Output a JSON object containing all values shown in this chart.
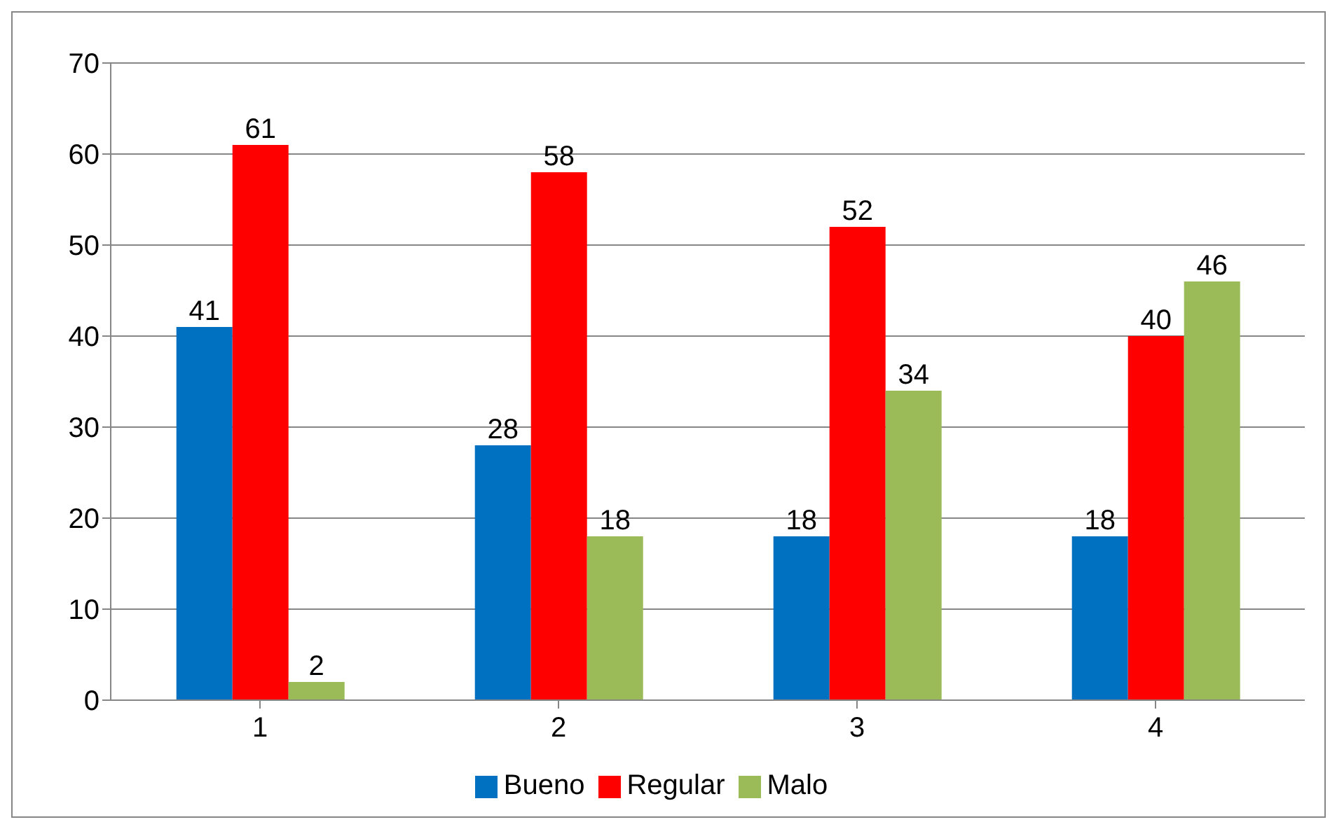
{
  "chart_data": {
    "type": "bar",
    "categories": [
      "1",
      "2",
      "3",
      "4"
    ],
    "series": [
      {
        "name": "Bueno",
        "color": "#0070c0",
        "values": [
          41,
          28,
          18,
          18
        ]
      },
      {
        "name": "Regular",
        "color": "#ff0000",
        "values": [
          61,
          58,
          52,
          40
        ]
      },
      {
        "name": "Malo",
        "color": "#9bbb59",
        "values": [
          2,
          18,
          34,
          46
        ]
      }
    ],
    "ylim": [
      0,
      70
    ],
    "yticks": [
      0,
      10,
      20,
      30,
      40,
      50,
      60,
      70
    ],
    "grid": "y",
    "legend": "bottom",
    "data_labels": true
  }
}
